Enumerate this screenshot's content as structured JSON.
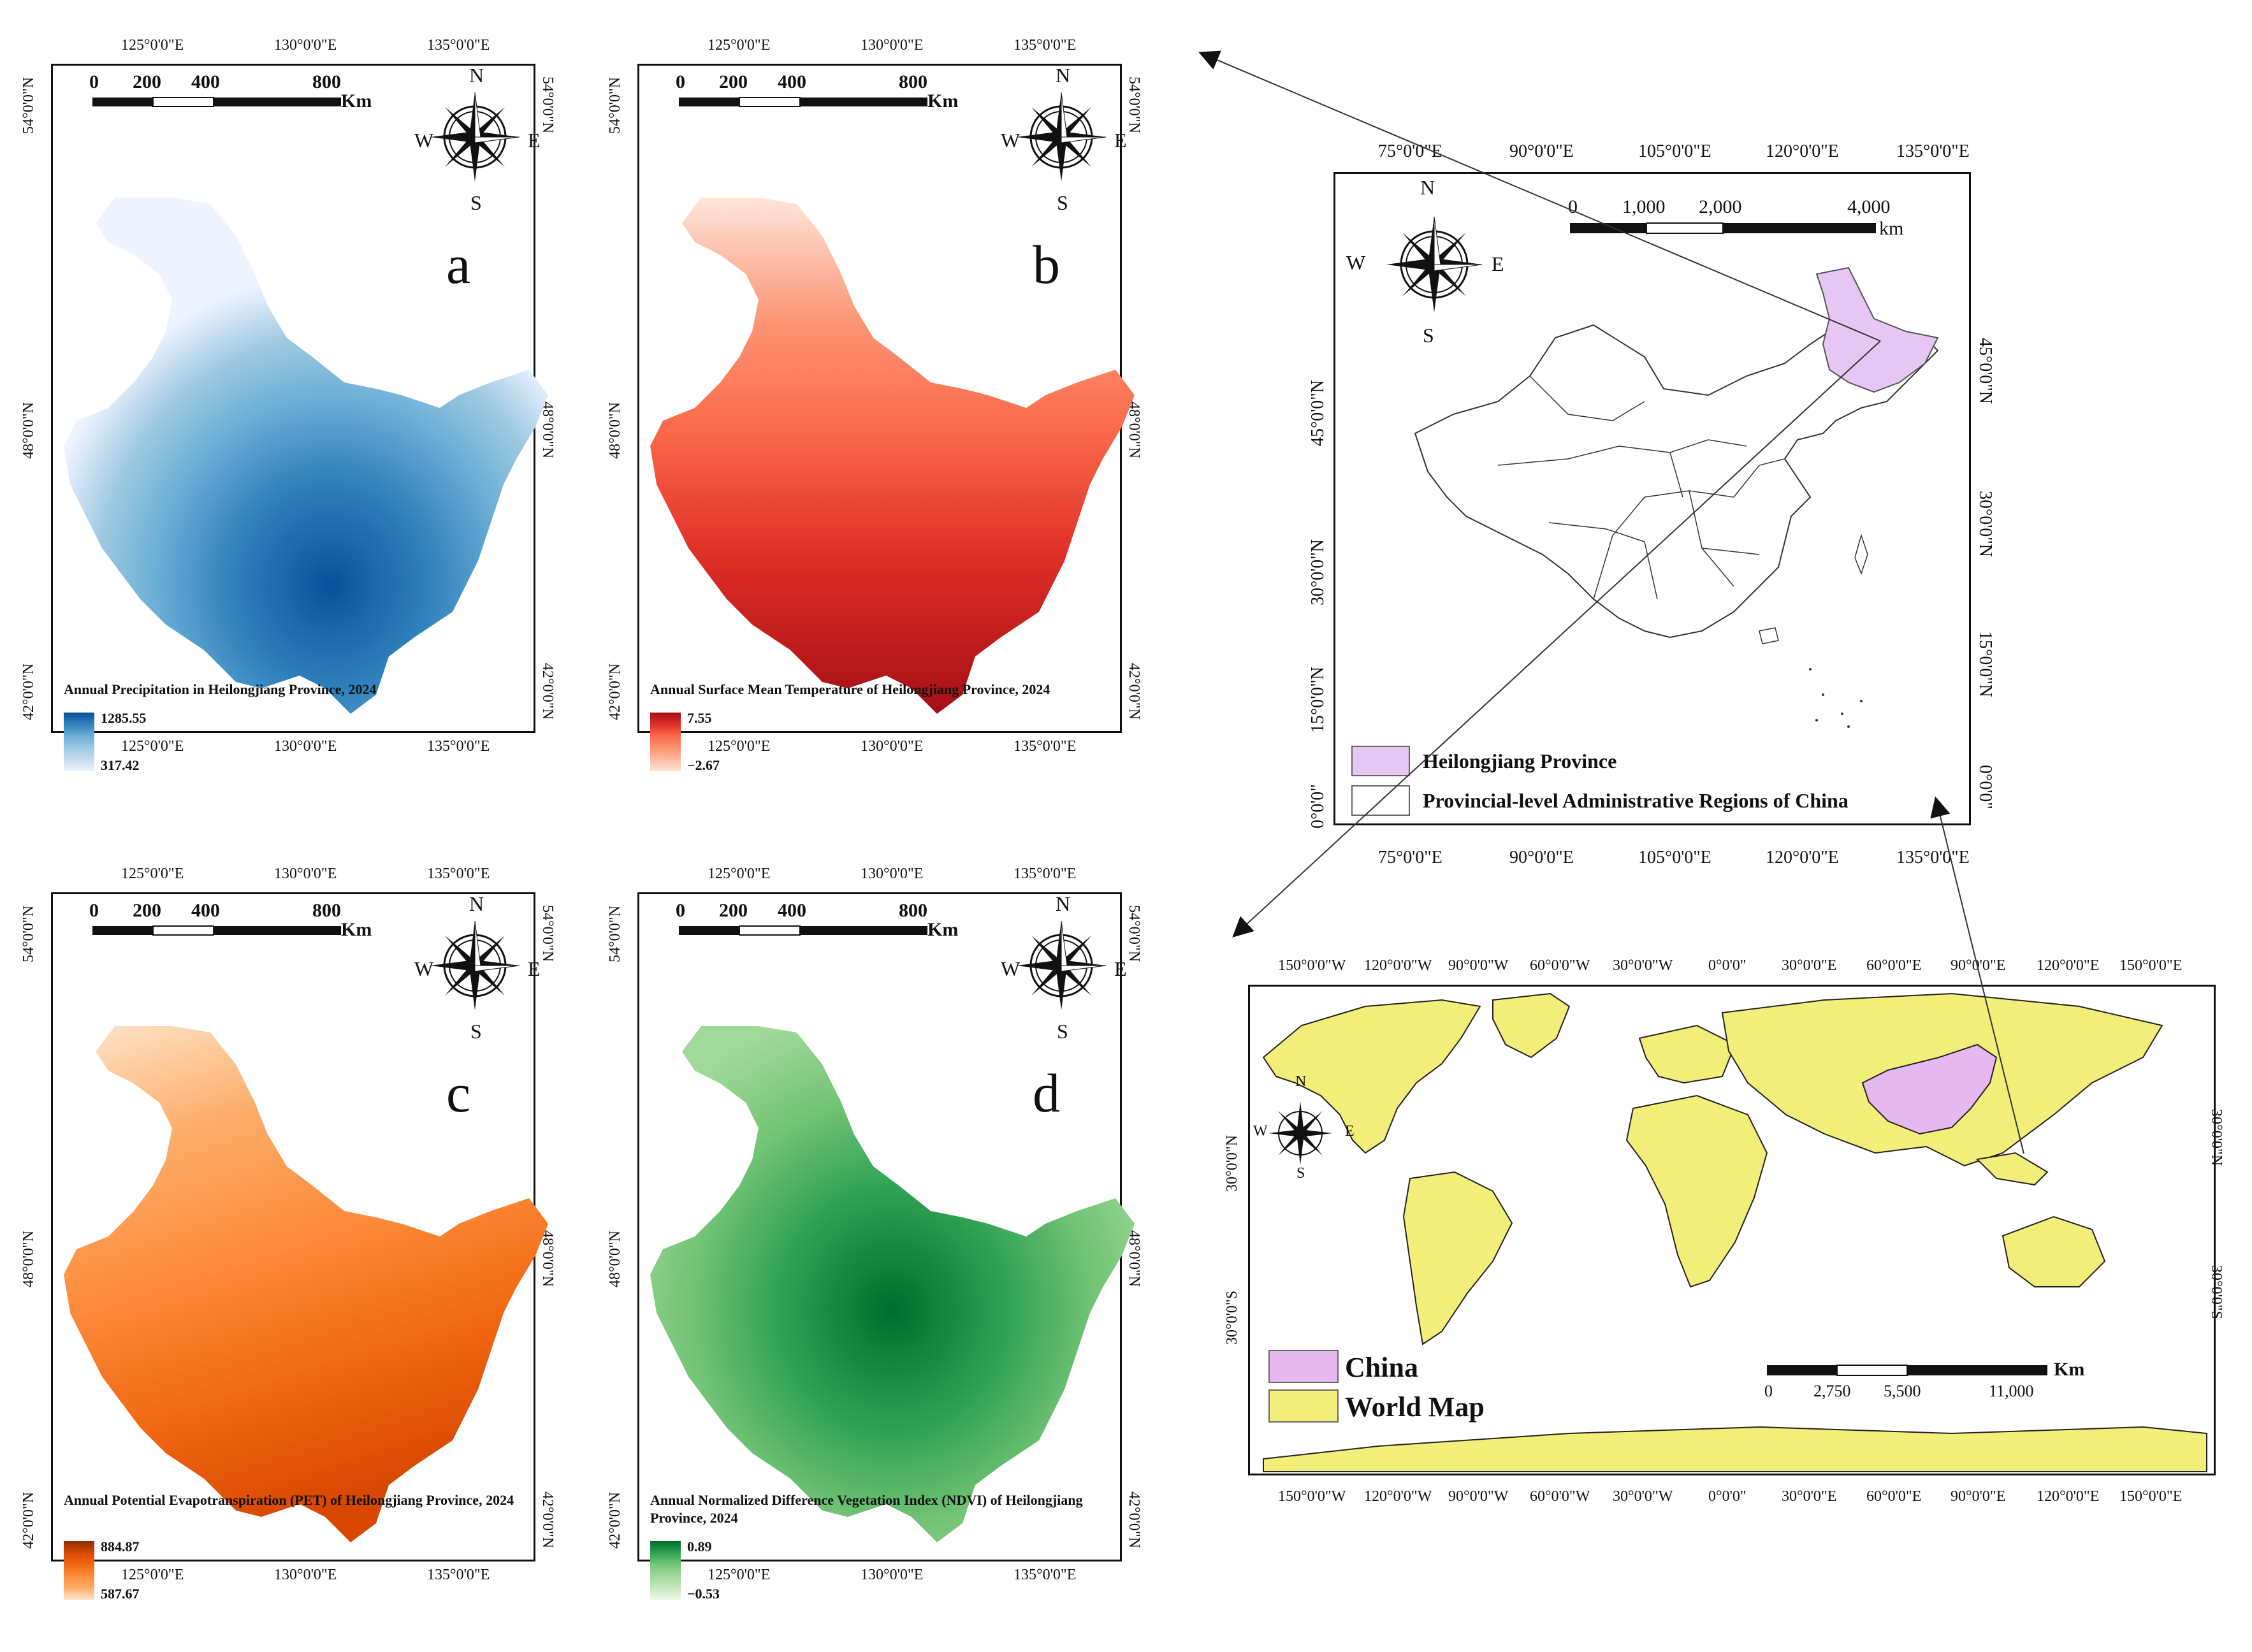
{
  "panels": [
    {
      "id": "a",
      "letter": "a",
      "legend_title": "Annual Precipitation in Heilongjiang Province, 2024",
      "max": "1285.55",
      "min": "317.42",
      "colors": [
        "#08519c",
        "#3182bd",
        "#6baed6",
        "#9ecae1",
        "#c6dbef",
        "#eff3ff"
      ]
    },
    {
      "id": "b",
      "letter": "b",
      "legend_title": "Annual Surface Mean Temperature of Heilongjiang Province, 2024",
      "max": "7.55",
      "min": "−2.67",
      "colors": [
        "#a50f15",
        "#de2d26",
        "#fb6a4a",
        "#fc9272",
        "#fcbba1",
        "#fee5d9"
      ]
    },
    {
      "id": "c",
      "letter": "c",
      "legend_title": "Annual Potential Evapotranspiration (PET) of Heilongjiang Province, 2024",
      "max": "884.87",
      "min": "587.67",
      "colors": [
        "#8c2d04",
        "#d94801",
        "#f16913",
        "#fd8d3c",
        "#fdae6b",
        "#fee6ce"
      ]
    },
    {
      "id": "d",
      "letter": "d",
      "legend_title": "Annual Normalized Difference Vegetation Index (NDVI) of Heilongjiang Province, 2024",
      "max": "0.89",
      "min": "−0.53",
      "colors": [
        "#006d2c",
        "#31a354",
        "#74c476",
        "#a1d99b",
        "#c7e9c0",
        "#edf8e9"
      ]
    }
  ],
  "panel_lon_ticks": [
    "125°0'0\"E",
    "130°0'0\"E",
    "135°0'0\"E"
  ],
  "panel_lat_ticks": [
    "54°0'0\"N",
    "48°0'0\"N",
    "42°0'0\"N"
  ],
  "panel_scale": {
    "t0": "0",
    "t1": "200",
    "t2": "400",
    "t3": "800",
    "unit": "Km"
  },
  "compass": {
    "n": "N",
    "s": "S",
    "e": "E",
    "w": "W"
  },
  "china_map": {
    "lon_ticks": [
      "75°0'0\"E",
      "90°0'0\"E",
      "105°0'0\"E",
      "120°0'0\"E",
      "135°0'0\"E"
    ],
    "lat_ticks": [
      "45°0'0\"N",
      "30°0'0\"N",
      "15°0'0\"N",
      "0°0'0\""
    ],
    "scale": {
      "t0": "0",
      "t1": "1,000",
      "t2": "2,000",
      "t3": "4,000",
      "unit": "km"
    },
    "legend": [
      {
        "label": "Heilongjiang Province",
        "color": "#e6c6f2"
      },
      {
        "label": "Provincial-level Administrative Regions of China",
        "color": "#ffffff"
      }
    ]
  },
  "world_map": {
    "lon_ticks": [
      "150°0'0\"W",
      "120°0'0\"W",
      "90°0'0\"W",
      "60°0'0\"W",
      "30°0'0\"W",
      "0°0'0\"",
      "30°0'0\"E",
      "60°0'0\"E",
      "90°0'0\"E",
      "120°0'0\"E",
      "150°0'0\"E"
    ],
    "lat_ticks": [
      "30°0'0\"N",
      "30°0'0\"S"
    ],
    "scale": {
      "t0": "0",
      "t1": "2,750",
      "t2": "5,500",
      "t3": "11,000",
      "unit": "Km"
    },
    "legend": [
      {
        "label": "China",
        "color": "#e6b8f0"
      },
      {
        "label": "World Map",
        "color": "#f2ee7a"
      }
    ]
  }
}
